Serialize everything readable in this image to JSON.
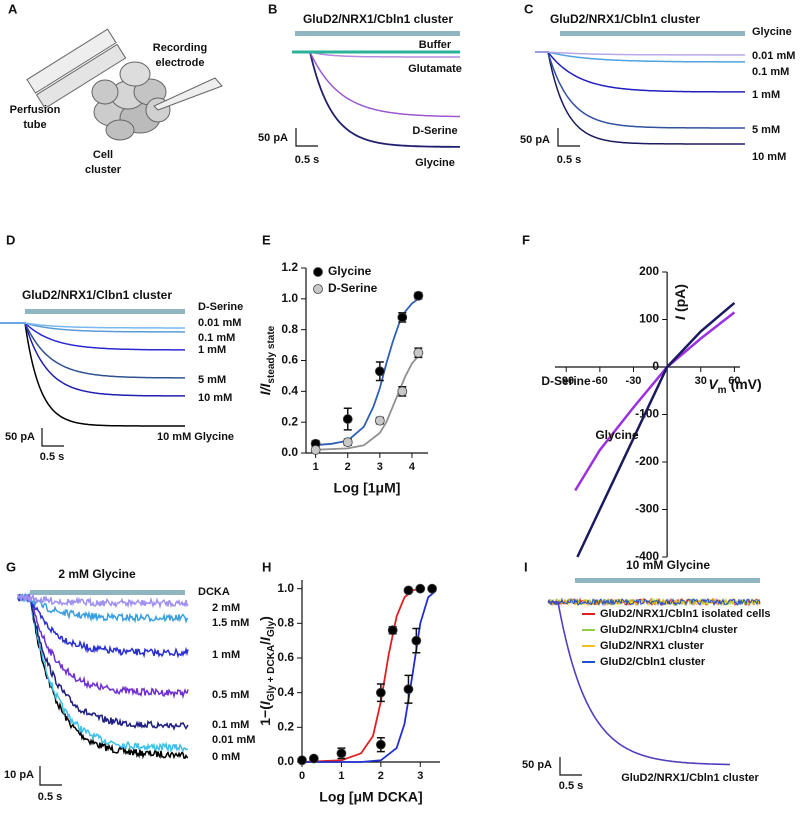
{
  "panels": {
    "A": {
      "label": "A",
      "electrode": [
        "Recording",
        "electrode"
      ],
      "tube": [
        "Perfusion",
        "tube"
      ],
      "cluster": [
        "Cell",
        "cluster"
      ]
    },
    "B": {
      "label": "B",
      "title": "GluD2/NRX1/Cbln1 cluster",
      "scale_y": "50 pA",
      "scale_x": "0.5 s",
      "traces": [
        {
          "name": "Buffer",
          "color": "#2bb39a"
        },
        {
          "name": "Glutamate",
          "color": "#b48be0"
        },
        {
          "name": "D-Serine",
          "color": "#9b59d0"
        },
        {
          "name": "Glycine",
          "color": "#1f1f6e"
        }
      ]
    },
    "C": {
      "label": "C",
      "title": "GluD2/NRX1/Cbln1 cluster",
      "agonist": "Glycine",
      "scale_y": "50 pA",
      "scale_x": "0.5 s",
      "traces": [
        {
          "name": "0.01 mM",
          "color": "#b8a8e8"
        },
        {
          "name": "0.1 mM",
          "color": "#4fa3e0"
        },
        {
          "name": "1 mM",
          "color": "#2020c0"
        },
        {
          "name": "5 mM",
          "color": "#3050a0"
        },
        {
          "name": "10 mM",
          "color": "#1a1a60"
        }
      ]
    },
    "D": {
      "label": "D",
      "title": "GluD2/NRX1/Clbn1 cluster",
      "agonist": "D-Serine",
      "scale_y": "50 pA",
      "scale_x": "0.5 s",
      "traces": [
        {
          "name": "0.01 mM",
          "color": "#7ab8f0"
        },
        {
          "name": "0.1 mM",
          "color": "#5b9bd5"
        },
        {
          "name": "1 mM",
          "color": "#2a2ad0"
        },
        {
          "name": "5 mM",
          "color": "#305090"
        },
        {
          "name": "10 mM",
          "color": "#2020b0"
        },
        {
          "name": "10 mM Glycine",
          "color": "#000000"
        }
      ]
    },
    "E": {
      "label": "E"
    },
    "F": {
      "label": "F"
    },
    "G": {
      "label": "G",
      "title": "2 mM Glycine",
      "antagonist": "DCKA",
      "scale_y": "10 pA",
      "scale_x": "0.5 s",
      "traces": [
        {
          "name": "2 mM",
          "color": "#a090f0"
        },
        {
          "name": "1.5 mM",
          "color": "#3a9fe0"
        },
        {
          "name": "1 mM",
          "color": "#2a30d0"
        },
        {
          "name": "0.5 mM",
          "color": "#7030d0"
        },
        {
          "name": "0.1 mM",
          "color": "#1f1f80"
        },
        {
          "name": "0.01 mM",
          "color": "#40c0e8",
          "label_color": "#40c0e8"
        },
        {
          "name": "0 mM",
          "color": "#000000"
        }
      ]
    },
    "H": {
      "label": "H"
    },
    "I": {
      "label": "I",
      "title": "10 mM Glycine",
      "scale_y": "50 pA",
      "scale_x": "0.5 s",
      "legend": [
        {
          "name": "GluD2/NRX1/Cbln1 isolated cells",
          "color": "#e02020"
        },
        {
          "name": "GluD2/NRX1/Cbln4 cluster",
          "color": "#90d040"
        },
        {
          "name": "GluD2/NRX1 cluster",
          "color": "#f0c020"
        },
        {
          "name": "GluD2/Cbln1 cluster",
          "color": "#2050d0"
        }
      ],
      "trace": {
        "name": "GluD2/NRX1/Cbln1 cluster",
        "color": "#5040c0"
      }
    }
  },
  "chart_data": [
    {
      "type": "scatter",
      "ylabel": "I/I",
      "ylabel_sub": "steady state",
      "xlabel": "Log [1μM]",
      "xlim": [
        0.7,
        4.5
      ],
      "xticks": [
        1,
        2,
        3,
        4
      ],
      "ylim": [
        0,
        1.2
      ],
      "yticks": [
        {
          "value": 0,
          "label": "0.0"
        },
        0.2,
        0.4,
        0.6,
        0.8,
        {
          "value": 1,
          "label": "1.0"
        },
        1.2
      ],
      "legend": "top-left",
      "series": [
        {
          "name": "Glycine",
          "color": "#000000",
          "x": [
            1,
            2,
            3,
            3.7,
            4.2
          ],
          "values": [
            0.06,
            0.22,
            0.53,
            0.88,
            1.02
          ],
          "errors": [
            0.02,
            0.07,
            0.06,
            0.03,
            0.02
          ]
        },
        {
          "name": "D-Serine",
          "color": "#c8c8c8",
          "x": [
            1,
            2,
            3,
            3.7,
            4.2
          ],
          "values": [
            0.02,
            0.07,
            0.21,
            0.4,
            0.65
          ],
          "errors": [
            0.01,
            0.02,
            0.02,
            0.03,
            0.03
          ]
        }
      ],
      "fits": [
        {
          "color": "#2f5fb3",
          "x": [
            0.9,
            1.5,
            2,
            2.5,
            2.8,
            3,
            3.2,
            3.4,
            3.6,
            3.8,
            4,
            4.2
          ],
          "values": [
            0.05,
            0.06,
            0.08,
            0.17,
            0.3,
            0.42,
            0.58,
            0.72,
            0.84,
            0.92,
            0.97,
            1.0
          ]
        },
        {
          "color": "#909090",
          "x": [
            0.9,
            2,
            2.5,
            3,
            3.2,
            3.4,
            3.6,
            3.8,
            4,
            4.2
          ],
          "values": [
            0.02,
            0.03,
            0.05,
            0.13,
            0.2,
            0.3,
            0.4,
            0.5,
            0.58,
            0.63
          ]
        }
      ]
    },
    {
      "type": "line",
      "axes_at_zero": true,
      "ylabel_parts": [
        "I",
        "(pA)"
      ],
      "xlabel_parts": [
        "V",
        "m",
        "(mV)"
      ],
      "xlim": [
        -100,
        65
      ],
      "xticks": [
        -90,
        -60,
        -30,
        30,
        60
      ],
      "ylim": [
        -400,
        200
      ],
      "yticks": [
        -400,
        -300,
        -200,
        -100,
        0,
        100,
        200
      ],
      "series": [
        {
          "name": "D-Serine",
          "color": "#9b30e0",
          "x": [
            -82,
            -60,
            -30,
            0,
            30,
            60
          ],
          "values": [
            -260,
            -175,
            -85,
            0,
            60,
            115
          ]
        },
        {
          "name": "Glycine",
          "color": "#1a1a5e",
          "x": [
            -80,
            -60,
            -30,
            0,
            30,
            60
          ],
          "values": [
            -400,
            -300,
            -150,
            0,
            75,
            135
          ]
        }
      ]
    },
    {
      "type": "scatter",
      "ylabel_parts": [
        "1−(",
        "I",
        "Gly + DCKA",
        "/",
        "I",
        "Gly",
        ")"
      ],
      "xlabel": "Log [μM DCKA]",
      "xlim": [
        0,
        3.5
      ],
      "xticks": [
        0,
        1,
        2,
        3
      ],
      "ylim": [
        0,
        1.05
      ],
      "yticks": [
        {
          "value": 0,
          "label": "0.0"
        },
        0.2,
        0.4,
        0.6,
        0.8,
        {
          "value": 1,
          "label": "1.0"
        }
      ],
      "series": [
        {
          "color": "#000000",
          "x": [
            0,
            0.3,
            1,
            2,
            2.3,
            2.7,
            3
          ],
          "values": [
            0.01,
            0.02,
            0.05,
            0.4,
            0.76,
            0.99,
            1.0
          ],
          "errors": [
            0.01,
            0.01,
            0.03,
            0.05,
            0.02,
            0.01,
            0.01
          ]
        },
        {
          "color": "#000000",
          "x": [
            2,
            2.7,
            2.9,
            3.3
          ],
          "values": [
            0.1,
            0.42,
            0.7,
            1.0
          ],
          "errors": [
            0.04,
            0.08,
            0.07,
            0.01
          ]
        }
      ],
      "fits": [
        {
          "color": "#e02020",
          "x": [
            0,
            1,
            1.5,
            1.8,
            2,
            2.2,
            2.4,
            2.6,
            2.8,
            3
          ],
          "values": [
            0,
            0.01,
            0.05,
            0.15,
            0.35,
            0.62,
            0.84,
            0.95,
            0.99,
            1.0
          ]
        },
        {
          "color": "#1f2fd0",
          "x": [
            0,
            1.5,
            2,
            2.4,
            2.6,
            2.8,
            3,
            3.2,
            3.4
          ],
          "values": [
            0,
            0,
            0.01,
            0.08,
            0.22,
            0.5,
            0.8,
            0.95,
            0.99
          ]
        }
      ]
    }
  ]
}
